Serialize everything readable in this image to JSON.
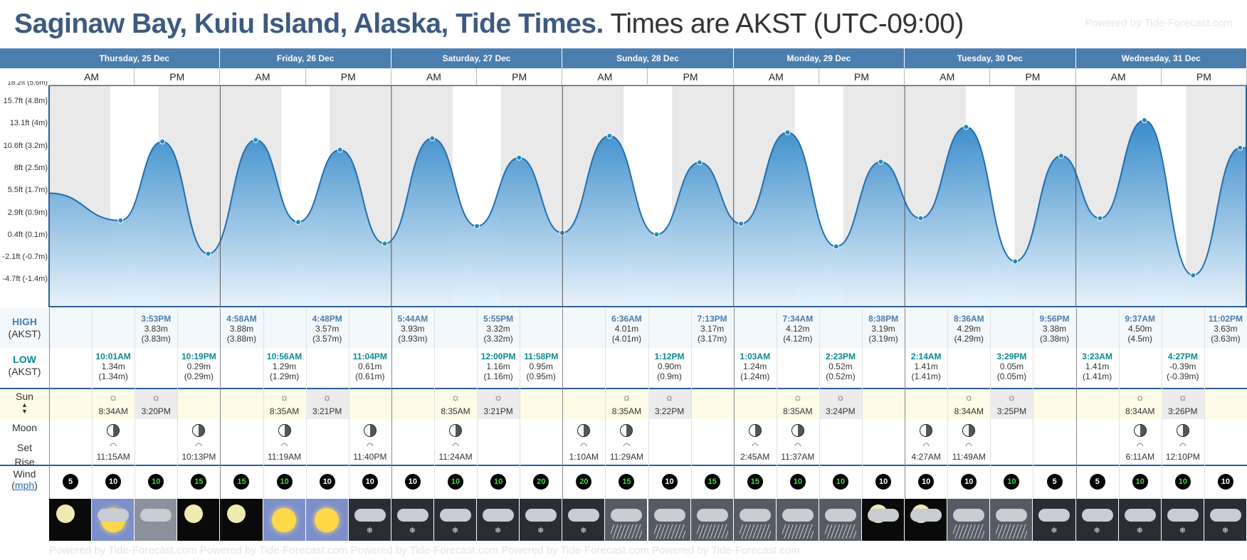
{
  "title": {
    "main": "Saginaw Bay, Kuiu Island, Alaska, Tide Times.",
    "sub": "Times are AKST (UTC-09:00)"
  },
  "powered": "Powered by Tide-Forecast.com",
  "days": [
    "Thursday, 25 Dec",
    "Friday, 26 Dec",
    "Saturday, 27 Dec",
    "Sunday, 28 Dec",
    "Monday, 29 Dec",
    "Tuesday, 30 Dec",
    "Wednesday, 31 Dec"
  ],
  "am_label": "AM",
  "pm_label": "PM",
  "y_axis_labels": [
    "15.7ft (4.8m)",
    "13.1ft (4m)",
    "10.6ft (3.2m)",
    "8ft (2.5m)",
    "5.5ft (1.7m)",
    "2.9ft (0.9m)",
    "0.4ft (0.1m)",
    "-2.1ft (-0.7m)",
    "-4.7ft (-1.4m)"
  ],
  "y_axis_top_partial": "18.2ft (5.6m)",
  "labels": {
    "high": "HIGH",
    "low": "LOW",
    "tz": "(AKST)",
    "sun": "Sun",
    "moon": "Moon",
    "set": "Set",
    "rise": "Rise",
    "wind": "Wind",
    "wind_unit": "mph"
  },
  "chart_data": {
    "type": "area",
    "title": "",
    "xlabel": "",
    "ylabel": "",
    "ylim": [
      -1.4,
      5.6
    ],
    "tides": [
      {
        "type": "low",
        "day": "Thu 25 Dec",
        "time": "10:01AM",
        "m": 1.34
      },
      {
        "type": "high",
        "day": "Thu 25 Dec",
        "time": "3:53PM",
        "m": 3.83
      },
      {
        "type": "low",
        "day": "Thu 25 Dec",
        "time": "10:19PM",
        "m": 0.29
      },
      {
        "type": "high",
        "day": "Fri 26 Dec",
        "time": "4:58AM",
        "m": 3.88
      },
      {
        "type": "low",
        "day": "Fri 26 Dec",
        "time": "10:56AM",
        "m": 1.29
      },
      {
        "type": "high",
        "day": "Fri 26 Dec",
        "time": "4:48PM",
        "m": 3.57
      },
      {
        "type": "low",
        "day": "Fri 26 Dec",
        "time": "11:04PM",
        "m": 0.61
      },
      {
        "type": "high",
        "day": "Sat 27 Dec",
        "time": "5:44AM",
        "m": 3.93
      },
      {
        "type": "low",
        "day": "Sat 27 Dec",
        "time": "12:00PM",
        "m": 1.16
      },
      {
        "type": "high",
        "day": "Sat 27 Dec",
        "time": "5:55PM",
        "m": 3.32
      },
      {
        "type": "low",
        "day": "Sat 27 Dec",
        "time": "11:58PM",
        "m": 0.95
      },
      {
        "type": "high",
        "day": "Sun 28 Dec",
        "time": "6:36AM",
        "m": 4.01
      },
      {
        "type": "low",
        "day": "Sun 28 Dec",
        "time": "1:12PM",
        "m": 0.9
      },
      {
        "type": "high",
        "day": "Sun 28 Dec",
        "time": "7:13PM",
        "m": 3.17
      },
      {
        "type": "low",
        "day": "Mon 29 Dec",
        "time": "1:03AM",
        "m": 1.24
      },
      {
        "type": "high",
        "day": "Mon 29 Dec",
        "time": "7:34AM",
        "m": 4.12
      },
      {
        "type": "low",
        "day": "Mon 29 Dec",
        "time": "2:23PM",
        "m": 0.52
      },
      {
        "type": "high",
        "day": "Mon 29 Dec",
        "time": "8:38PM",
        "m": 3.19
      },
      {
        "type": "low",
        "day": "Tue 30 Dec",
        "time": "2:14AM",
        "m": 1.41
      },
      {
        "type": "high",
        "day": "Tue 30 Dec",
        "time": "8:36AM",
        "m": 4.29
      },
      {
        "type": "low",
        "day": "Tue 30 Dec",
        "time": "3:29PM",
        "m": 0.05
      },
      {
        "type": "high",
        "day": "Tue 30 Dec",
        "time": "9:56PM",
        "m": 3.38
      },
      {
        "type": "low",
        "day": "Wed 31 Dec",
        "time": "3:23AM",
        "m": 1.41
      },
      {
        "type": "high",
        "day": "Wed 31 Dec",
        "time": "9:37AM",
        "m": 4.5
      },
      {
        "type": "low",
        "day": "Wed 31 Dec",
        "time": "4:27PM",
        "m": -0.39
      },
      {
        "type": "high",
        "day": "Wed 31 Dec",
        "time": "11:02PM",
        "m": 3.63
      }
    ]
  },
  "high_cells": [
    [
      {
        "col": 2,
        "time": "3:53PM",
        "m": "3.83m",
        "paren": "(3.83m)"
      }
    ],
    [
      {
        "col": 0,
        "time": "4:58AM",
        "m": "3.88m",
        "paren": "(3.88m)"
      },
      {
        "col": 2,
        "time": "4:48PM",
        "m": "3.57m",
        "paren": "(3.57m)"
      }
    ],
    [
      {
        "col": 0,
        "time": "5:44AM",
        "m": "3.93m",
        "paren": "(3.93m)"
      },
      {
        "col": 2,
        "time": "5:55PM",
        "m": "3.32m",
        "paren": "(3.32m)"
      }
    ],
    [
      {
        "col": 1,
        "time": "6:36AM",
        "m": "4.01m",
        "paren": "(4.01m)"
      },
      {
        "col": 3,
        "time": "7:13PM",
        "m": "3.17m",
        "paren": "(3.17m)"
      }
    ],
    [
      {
        "col": 1,
        "time": "7:34AM",
        "m": "4.12m",
        "paren": "(4.12m)"
      },
      {
        "col": 3,
        "time": "8:38PM",
        "m": "3.19m",
        "paren": "(3.19m)"
      }
    ],
    [
      {
        "col": 1,
        "time": "8:36AM",
        "m": "4.29m",
        "paren": "(4.29m)"
      },
      {
        "col": 3,
        "time": "9:56PM",
        "m": "3.38m",
        "paren": "(3.38m)"
      }
    ],
    [
      {
        "col": 1,
        "time": "9:37AM",
        "m": "4.50m",
        "paren": "(4.5m)"
      },
      {
        "col": 3,
        "time": "11:02PM",
        "m": "3.63m",
        "paren": "(3.63m)"
      }
    ]
  ],
  "low_cells": [
    [
      {
        "col": 1,
        "time": "10:01AM",
        "m": "1.34m",
        "paren": "(1.34m)"
      },
      {
        "col": 3,
        "time": "10:19PM",
        "m": "0.29m",
        "paren": "(0.29m)"
      }
    ],
    [
      {
        "col": 1,
        "time": "10:56AM",
        "m": "1.29m",
        "paren": "(1.29m)"
      },
      {
        "col": 3,
        "time": "11:04PM",
        "m": "0.61m",
        "paren": "(0.61m)"
      }
    ],
    [
      {
        "col": 2,
        "time": "12:00PM",
        "m": "1.16m",
        "paren": "(1.16m)"
      },
      {
        "col": 3,
        "time": "11:58PM",
        "m": "0.95m",
        "paren": "(0.95m)"
      }
    ],
    [
      {
        "col": 2,
        "time": "1:12PM",
        "m": "0.90m",
        "paren": "(0.9m)"
      }
    ],
    [
      {
        "col": 0,
        "time": "1:03AM",
        "m": "1.24m",
        "paren": "(1.24m)"
      },
      {
        "col": 2,
        "time": "2:23PM",
        "m": "0.52m",
        "paren": "(0.52m)"
      }
    ],
    [
      {
        "col": 0,
        "time": "2:14AM",
        "m": "1.41m",
        "paren": "(1.41m)"
      },
      {
        "col": 2,
        "time": "3:29PM",
        "m": "0.05m",
        "paren": "(0.05m)"
      }
    ],
    [
      {
        "col": 0,
        "time": "3:23AM",
        "m": "1.41m",
        "paren": "(1.41m)"
      },
      {
        "col": 2,
        "time": "4:27PM",
        "m": "-0.39m",
        "paren": "(-0.39m)"
      }
    ]
  ],
  "sun": [
    {
      "rise": "8:34AM",
      "set": "3:20PM"
    },
    {
      "rise": "8:35AM",
      "set": "3:21PM"
    },
    {
      "rise": "8:35AM",
      "set": "3:21PM"
    },
    {
      "rise": "8:35AM",
      "set": "3:22PM"
    },
    {
      "rise": "8:35AM",
      "set": "3:24PM"
    },
    {
      "rise": "8:34AM",
      "set": "3:25PM"
    },
    {
      "rise": "8:34AM",
      "set": "3:26PM"
    }
  ],
  "moon_rows": [
    {
      "col": 1,
      "time": "11:15AM",
      "kind": "rise"
    },
    {
      "col": 3,
      "time": "10:13PM",
      "kind": "rise"
    },
    {
      "col": 5,
      "time": "11:19AM",
      "kind": "rise"
    },
    {
      "col": 7,
      "time": "11:40PM",
      "kind": "rise"
    },
    {
      "col": 9,
      "time": "11:24AM",
      "kind": "rise"
    },
    {
      "col": 12,
      "time": "1:10AM",
      "kind": "set"
    },
    {
      "col": 13,
      "time": "11:29AM",
      "kind": "rise"
    },
    {
      "col": 16,
      "time": "2:45AM",
      "kind": "set"
    },
    {
      "col": 17,
      "time": "11:37AM",
      "kind": "rise"
    },
    {
      "col": 20,
      "time": "4:27AM",
      "kind": "set"
    },
    {
      "col": 21,
      "time": "11:49AM",
      "kind": "rise"
    },
    {
      "col": 25,
      "time": "6:11AM",
      "kind": "set"
    },
    {
      "col": 26,
      "time": "12:10PM",
      "kind": "rise"
    }
  ],
  "wind": [
    5,
    10,
    10,
    15,
    15,
    10,
    10,
    10,
    10,
    10,
    10,
    20,
    20,
    15,
    10,
    15,
    15,
    10,
    10,
    10,
    10,
    10,
    10,
    5,
    5,
    10,
    10,
    10
  ],
  "wind_green": [
    false,
    false,
    true,
    true,
    true,
    true,
    false,
    false,
    false,
    true,
    true,
    true,
    true,
    true,
    false,
    true,
    true,
    true,
    true,
    false,
    false,
    false,
    true,
    false,
    false,
    true,
    true,
    false
  ],
  "weather": [
    "moon-night",
    "partly-sunny",
    "cloudy",
    "moon-night",
    "moon-night",
    "sunny",
    "sunny",
    "cloud-snow",
    "cloud-snow",
    "cloud-snow",
    "cloud-snow",
    "cloud-snow",
    "cloud-snow",
    "cloud-rain",
    "cloud-rain",
    "cloud-rain",
    "cloud-rain",
    "cloud-rain",
    "cloud-rain",
    "moon-cloud",
    "moon-cloud",
    "cloud-rain",
    "cloud-rain",
    "cloud-snow",
    "cloud-snow",
    "cloud-snow",
    "cloud-snow",
    "cloud-snow"
  ],
  "colors": {
    "header": "#4a7eae",
    "title": "#3d5a80",
    "high": "#4a7eae",
    "low": "#0a8a8f",
    "wave": "#2f86c8",
    "sunrow": "#fefbe6"
  }
}
